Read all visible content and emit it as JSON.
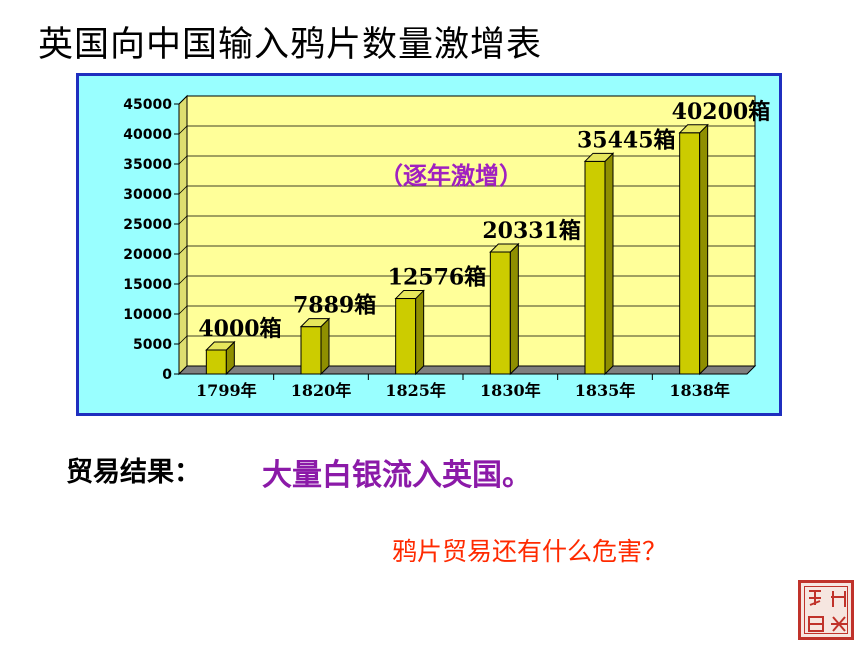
{
  "title": "英国向中国输入鸦片数量激增表",
  "chart_data": {
    "type": "bar",
    "categories": [
      "1799年",
      "1820年",
      "1825年",
      "1830年",
      "1835年",
      "1838年"
    ],
    "values": [
      4000,
      7889,
      12576,
      20331,
      35445,
      40200
    ],
    "data_labels": [
      "4000箱",
      "7889箱",
      "12576箱",
      "20331箱",
      "35445箱",
      "40200箱"
    ],
    "ylim": [
      0,
      45000
    ],
    "yticks": [
      "0",
      "5000",
      "10000",
      "15000",
      "20000",
      "25000",
      "30000",
      "35000",
      "40000",
      "45000"
    ],
    "annotation": "（逐年激增）",
    "grid": true,
    "colors": {
      "bar_front": "#cccc00",
      "bar_side": "#8f8f00",
      "bar_top": "#e6e65c",
      "plot_bg": "#ffff99",
      "panel_bg": "#99ffff",
      "panel_border": "#1f2fbf",
      "floor": "#7f7f7f"
    }
  },
  "result": {
    "label": "贸易结果：",
    "text": "大量白银流入英国。"
  },
  "question": "鸦片贸易还有什么危害？",
  "seal": {
    "text": "鸦片战争"
  }
}
